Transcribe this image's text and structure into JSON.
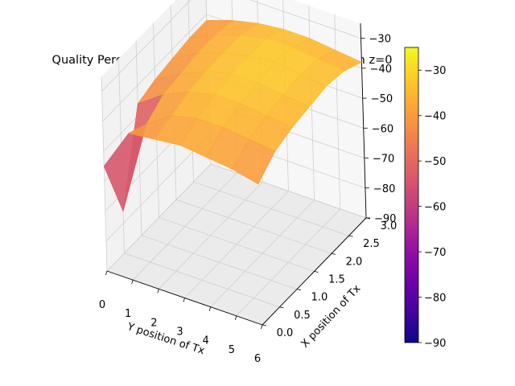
{
  "chart_data": {
    "type": "surface3d",
    "title": "Quality Percentile of coverage by transmitter location z=0",
    "xlabel": "Y position of Tx",
    "ylabel": "X position of Tx",
    "zlabel": "",
    "x": [
      0,
      1,
      2,
      3,
      4,
      5,
      6
    ],
    "y": [
      0.0,
      0.5,
      1.0,
      1.5,
      2.0,
      2.5,
      3.0
    ],
    "xlim": [
      0,
      6
    ],
    "ylim": [
      0.0,
      3.0
    ],
    "zlim": [
      -90,
      -25
    ],
    "x_ticks": [
      "0",
      "1",
      "2",
      "3",
      "4",
      "5",
      "6"
    ],
    "y_ticks": [
      "0.0",
      "0.5",
      "1.0",
      "1.5",
      "2.0",
      "2.5",
      "3.0"
    ],
    "z_ticks": [
      "−30",
      "−40",
      "−50",
      "−60",
      "−70",
      "−80",
      "−90"
    ],
    "z_grid": [
      [
        -55,
        -41,
        -40,
        -39,
        -40,
        -41,
        -43
      ],
      [
        -76,
        -44,
        -38,
        -36,
        -36,
        -37,
        -38
      ],
      [
        -46,
        -40,
        -36,
        -34,
        -34,
        -35,
        -36
      ],
      [
        -44,
        -39,
        -35,
        -33,
        -33,
        -34,
        -35
      ],
      [
        -43,
        -38,
        -35,
        -33,
        -32,
        -33,
        -34
      ],
      [
        -42,
        -38,
        -35,
        -33,
        -33,
        -34,
        -35
      ],
      [
        -42,
        -39,
        -37,
        -36,
        -36,
        -37,
        -38
      ]
    ],
    "colormap": "plasma",
    "colorbar": {
      "min": -90,
      "max": -25,
      "ticks": [
        "−30",
        "−40",
        "−50",
        "−60",
        "−70",
        "−80",
        "−90"
      ]
    },
    "grid": true
  }
}
